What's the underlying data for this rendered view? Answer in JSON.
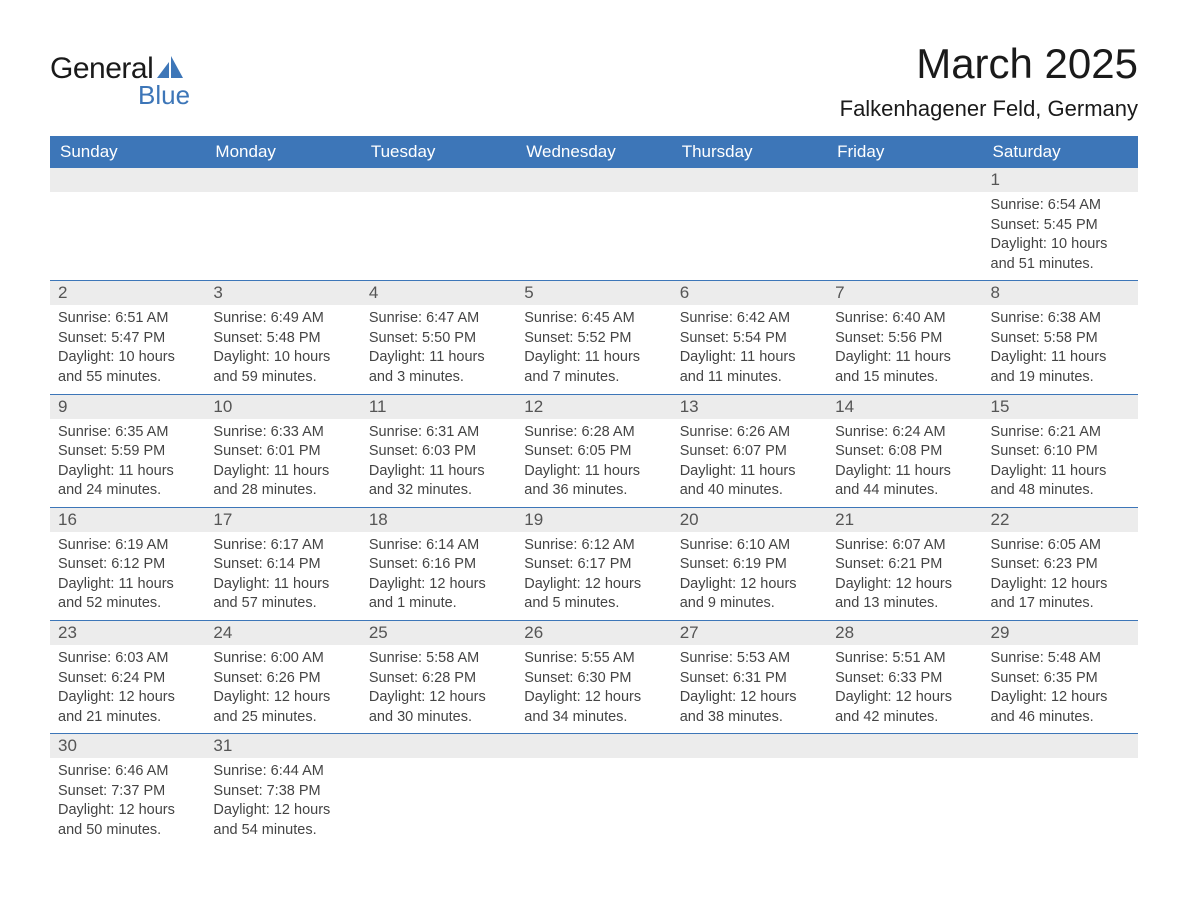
{
  "brand": {
    "word1": "General",
    "word2": "Blue",
    "sail_color": "#3d76b8",
    "text_color_dark": "#1a1a1a"
  },
  "header": {
    "month_title": "March 2025",
    "location": "Falkenhagener Feld, Germany"
  },
  "colors": {
    "header_bg": "#3d76b8",
    "header_text": "#ffffff",
    "daynum_bg": "#ececec",
    "daynum_text": "#555555",
    "body_text": "#444444",
    "week_divider": "#3d76b8",
    "page_bg": "#ffffff"
  },
  "typography": {
    "month_title_fontsize_pt": 32,
    "location_fontsize_pt": 17,
    "dow_fontsize_pt": 13,
    "daynum_fontsize_pt": 13,
    "body_fontsize_pt": 11,
    "font_family": "Arial"
  },
  "days_of_week": [
    "Sunday",
    "Monday",
    "Tuesday",
    "Wednesday",
    "Thursday",
    "Friday",
    "Saturday"
  ],
  "labels": {
    "sunrise": "Sunrise:",
    "sunset": "Sunset:",
    "daylight": "Daylight:"
  },
  "weeks": [
    [
      {
        "n": "",
        "empty": true
      },
      {
        "n": "",
        "empty": true
      },
      {
        "n": "",
        "empty": true
      },
      {
        "n": "",
        "empty": true
      },
      {
        "n": "",
        "empty": true
      },
      {
        "n": "",
        "empty": true
      },
      {
        "n": "1",
        "sunrise": "6:54 AM",
        "sunset": "5:45 PM",
        "daylight": "10 hours and 51 minutes."
      }
    ],
    [
      {
        "n": "2",
        "sunrise": "6:51 AM",
        "sunset": "5:47 PM",
        "daylight": "10 hours and 55 minutes."
      },
      {
        "n": "3",
        "sunrise": "6:49 AM",
        "sunset": "5:48 PM",
        "daylight": "10 hours and 59 minutes."
      },
      {
        "n": "4",
        "sunrise": "6:47 AM",
        "sunset": "5:50 PM",
        "daylight": "11 hours and 3 minutes."
      },
      {
        "n": "5",
        "sunrise": "6:45 AM",
        "sunset": "5:52 PM",
        "daylight": "11 hours and 7 minutes."
      },
      {
        "n": "6",
        "sunrise": "6:42 AM",
        "sunset": "5:54 PM",
        "daylight": "11 hours and 11 minutes."
      },
      {
        "n": "7",
        "sunrise": "6:40 AM",
        "sunset": "5:56 PM",
        "daylight": "11 hours and 15 minutes."
      },
      {
        "n": "8",
        "sunrise": "6:38 AM",
        "sunset": "5:58 PM",
        "daylight": "11 hours and 19 minutes."
      }
    ],
    [
      {
        "n": "9",
        "sunrise": "6:35 AM",
        "sunset": "5:59 PM",
        "daylight": "11 hours and 24 minutes."
      },
      {
        "n": "10",
        "sunrise": "6:33 AM",
        "sunset": "6:01 PM",
        "daylight": "11 hours and 28 minutes."
      },
      {
        "n": "11",
        "sunrise": "6:31 AM",
        "sunset": "6:03 PM",
        "daylight": "11 hours and 32 minutes."
      },
      {
        "n": "12",
        "sunrise": "6:28 AM",
        "sunset": "6:05 PM",
        "daylight": "11 hours and 36 minutes."
      },
      {
        "n": "13",
        "sunrise": "6:26 AM",
        "sunset": "6:07 PM",
        "daylight": "11 hours and 40 minutes."
      },
      {
        "n": "14",
        "sunrise": "6:24 AM",
        "sunset": "6:08 PM",
        "daylight": "11 hours and 44 minutes."
      },
      {
        "n": "15",
        "sunrise": "6:21 AM",
        "sunset": "6:10 PM",
        "daylight": "11 hours and 48 minutes."
      }
    ],
    [
      {
        "n": "16",
        "sunrise": "6:19 AM",
        "sunset": "6:12 PM",
        "daylight": "11 hours and 52 minutes."
      },
      {
        "n": "17",
        "sunrise": "6:17 AM",
        "sunset": "6:14 PM",
        "daylight": "11 hours and 57 minutes."
      },
      {
        "n": "18",
        "sunrise": "6:14 AM",
        "sunset": "6:16 PM",
        "daylight": "12 hours and 1 minute."
      },
      {
        "n": "19",
        "sunrise": "6:12 AM",
        "sunset": "6:17 PM",
        "daylight": "12 hours and 5 minutes."
      },
      {
        "n": "20",
        "sunrise": "6:10 AM",
        "sunset": "6:19 PM",
        "daylight": "12 hours and 9 minutes."
      },
      {
        "n": "21",
        "sunrise": "6:07 AM",
        "sunset": "6:21 PM",
        "daylight": "12 hours and 13 minutes."
      },
      {
        "n": "22",
        "sunrise": "6:05 AM",
        "sunset": "6:23 PM",
        "daylight": "12 hours and 17 minutes."
      }
    ],
    [
      {
        "n": "23",
        "sunrise": "6:03 AM",
        "sunset": "6:24 PM",
        "daylight": "12 hours and 21 minutes."
      },
      {
        "n": "24",
        "sunrise": "6:00 AM",
        "sunset": "6:26 PM",
        "daylight": "12 hours and 25 minutes."
      },
      {
        "n": "25",
        "sunrise": "5:58 AM",
        "sunset": "6:28 PM",
        "daylight": "12 hours and 30 minutes."
      },
      {
        "n": "26",
        "sunrise": "5:55 AM",
        "sunset": "6:30 PM",
        "daylight": "12 hours and 34 minutes."
      },
      {
        "n": "27",
        "sunrise": "5:53 AM",
        "sunset": "6:31 PM",
        "daylight": "12 hours and 38 minutes."
      },
      {
        "n": "28",
        "sunrise": "5:51 AM",
        "sunset": "6:33 PM",
        "daylight": "12 hours and 42 minutes."
      },
      {
        "n": "29",
        "sunrise": "5:48 AM",
        "sunset": "6:35 PM",
        "daylight": "12 hours and 46 minutes."
      }
    ],
    [
      {
        "n": "30",
        "sunrise": "6:46 AM",
        "sunset": "7:37 PM",
        "daylight": "12 hours and 50 minutes."
      },
      {
        "n": "31",
        "sunrise": "6:44 AM",
        "sunset": "7:38 PM",
        "daylight": "12 hours and 54 minutes."
      },
      {
        "n": "",
        "empty": true
      },
      {
        "n": "",
        "empty": true
      },
      {
        "n": "",
        "empty": true
      },
      {
        "n": "",
        "empty": true
      },
      {
        "n": "",
        "empty": true
      }
    ]
  ]
}
